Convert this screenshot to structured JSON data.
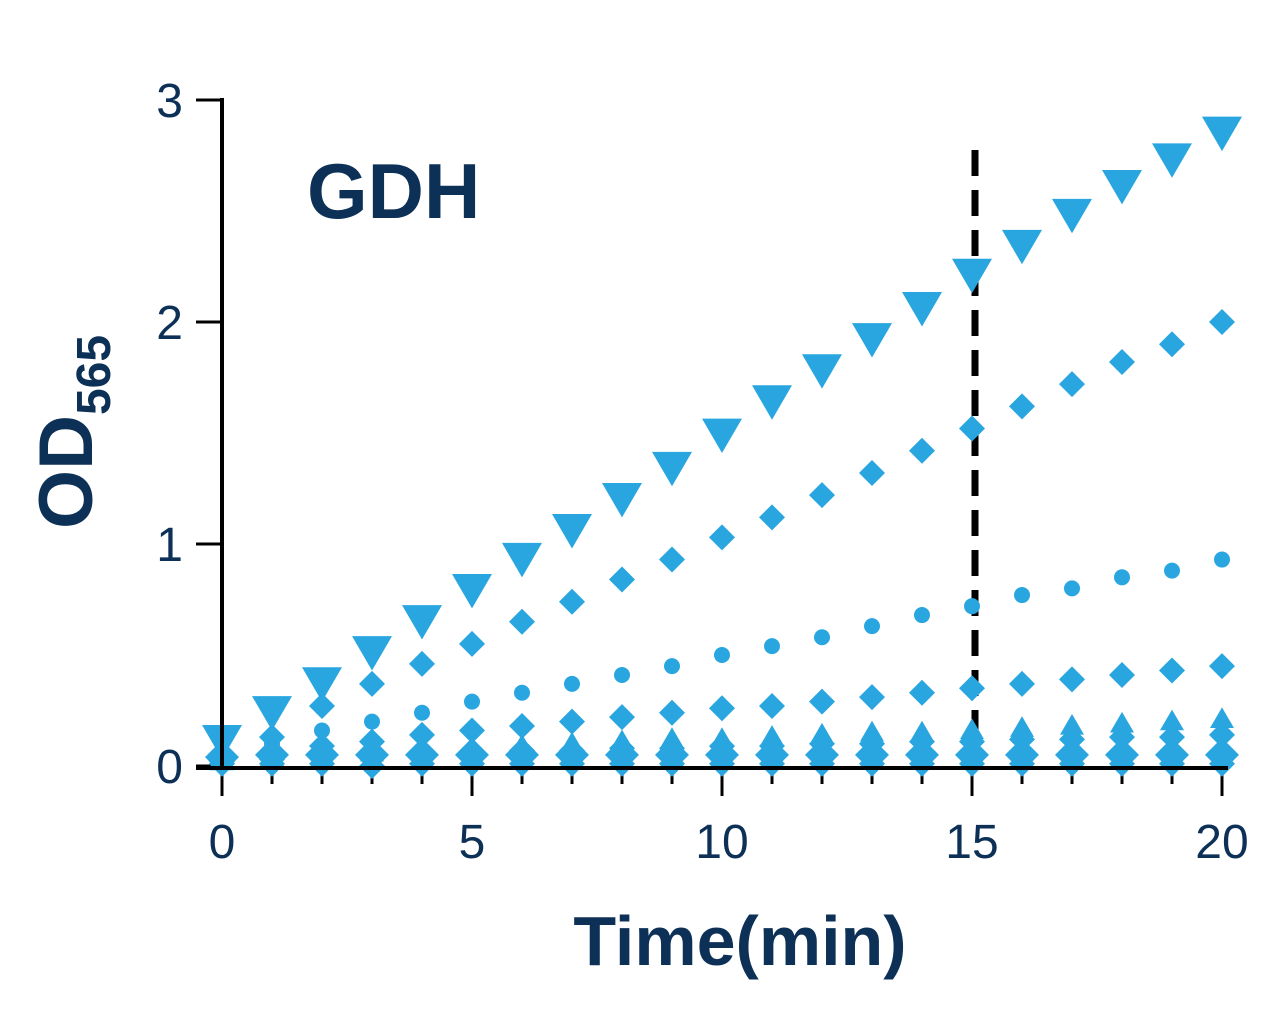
{
  "chart_data": {
    "type": "scatter",
    "title": "",
    "annotation": "GDH",
    "xlabel": "Time(min)",
    "ylabel_main": "OD",
    "ylabel_sub": "565",
    "xlim": [
      0,
      20
    ],
    "ylim": [
      0,
      3
    ],
    "xticks": [
      "0",
      "5",
      "10",
      "15",
      "20"
    ],
    "yticks": [
      "0",
      "1",
      "2",
      "3"
    ],
    "reference_line_x": 15,
    "marker_color": "#29a6e0",
    "text_color": "#0d3057",
    "x": [
      0,
      1,
      2,
      3,
      4,
      5,
      6,
      7,
      8,
      9,
      10,
      11,
      12,
      13,
      14,
      15,
      16,
      17,
      18,
      19,
      20
    ],
    "series": [
      {
        "marker": "triangle-down",
        "values": [
          0.12,
          0.25,
          0.38,
          0.52,
          0.66,
          0.8,
          0.94,
          1.07,
          1.21,
          1.35,
          1.5,
          1.65,
          1.79,
          1.93,
          2.07,
          2.22,
          2.35,
          2.49,
          2.62,
          2.74,
          2.86
        ]
      },
      {
        "marker": "diamond",
        "values": [
          0.03,
          0.13,
          0.27,
          0.37,
          0.46,
          0.55,
          0.65,
          0.74,
          0.84,
          0.93,
          1.03,
          1.12,
          1.22,
          1.32,
          1.42,
          1.52,
          1.62,
          1.72,
          1.82,
          1.9,
          2.0
        ]
      },
      {
        "marker": "circle",
        "values": [
          0.03,
          0.1,
          0.16,
          0.2,
          0.24,
          0.29,
          0.33,
          0.37,
          0.41,
          0.45,
          0.5,
          0.54,
          0.58,
          0.63,
          0.68,
          0.72,
          0.77,
          0.8,
          0.85,
          0.88,
          0.93
        ]
      },
      {
        "marker": "diamond",
        "values": [
          0.03,
          0.06,
          0.09,
          0.11,
          0.14,
          0.16,
          0.18,
          0.2,
          0.22,
          0.24,
          0.26,
          0.27,
          0.29,
          0.31,
          0.33,
          0.35,
          0.37,
          0.39,
          0.41,
          0.43,
          0.45
        ]
      },
      {
        "marker": "triangle-up",
        "values": [
          0.02,
          0.04,
          0.05,
          0.06,
          0.07,
          0.08,
          0.09,
          0.1,
          0.11,
          0.12,
          0.12,
          0.13,
          0.14,
          0.15,
          0.15,
          0.16,
          0.17,
          0.18,
          0.19,
          0.2,
          0.21
        ]
      },
      {
        "marker": "diamond",
        "values": [
          0.02,
          0.03,
          0.04,
          0.05,
          0.06,
          0.06,
          0.07,
          0.07,
          0.08,
          0.08,
          0.09,
          0.09,
          0.1,
          0.1,
          0.11,
          0.11,
          0.12,
          0.12,
          0.13,
          0.13,
          0.14
        ]
      },
      {
        "marker": "diamond",
        "values": [
          0.04,
          0.05,
          0.05,
          0.05,
          0.05,
          0.05,
          0.05,
          0.05,
          0.05,
          0.05,
          0.05,
          0.05,
          0.05,
          0.05,
          0.05,
          0.05,
          0.05,
          0.05,
          0.05,
          0.05,
          0.05
        ]
      },
      {
        "marker": "diamond",
        "values": [
          0.01,
          0.01,
          0.01,
          0.0,
          0.01,
          0.01,
          0.01,
          0.01,
          0.01,
          0.01,
          0.01,
          0.01,
          0.01,
          0.01,
          0.01,
          0.01,
          0.01,
          0.01,
          0.01,
          0.01,
          0.01
        ]
      }
    ]
  }
}
